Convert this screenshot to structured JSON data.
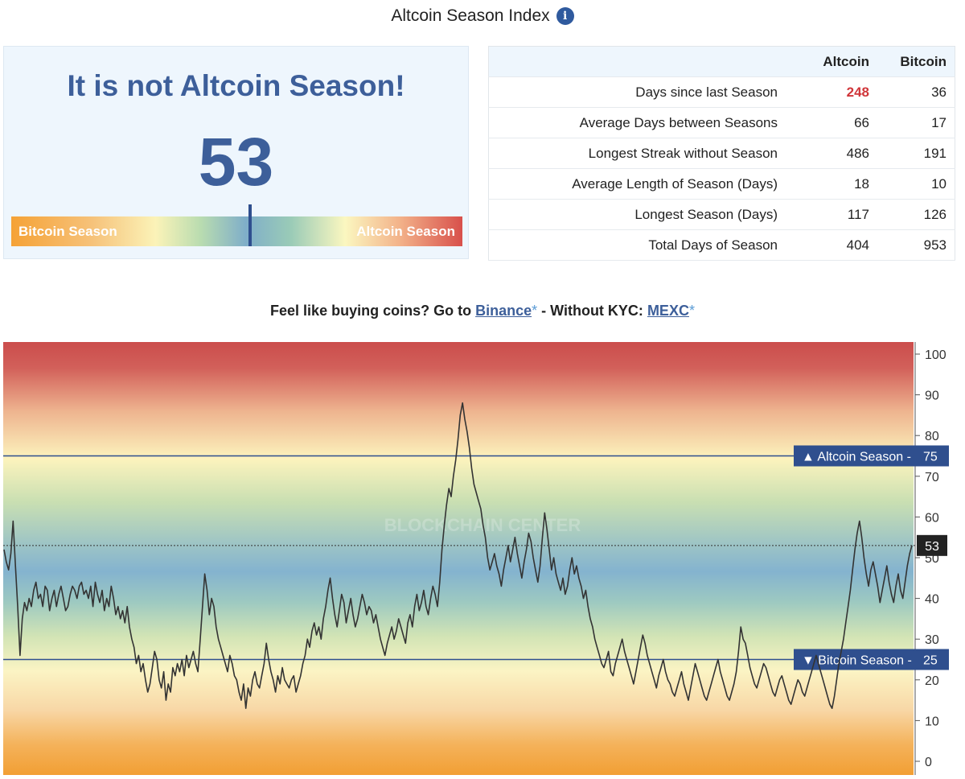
{
  "header": {
    "title": "Altcoin Season Index",
    "info_icon": "info-icon"
  },
  "status": {
    "headline": "It is not Altcoin Season!",
    "index_value": 53,
    "bar_left_label": "Bitcoin Season",
    "bar_right_label": "Altcoin Season",
    "marker_fraction": 0.53
  },
  "table": {
    "columns": [
      "",
      "Altcoin",
      "Bitcoin"
    ],
    "rows": [
      {
        "label": "Days since last Season",
        "altcoin": "248",
        "bitcoin": "36"
      },
      {
        "label": "Average Days between Seasons",
        "altcoin": "66",
        "bitcoin": "17"
      },
      {
        "label": "Longest Streak without Season",
        "altcoin": "486",
        "bitcoin": "191"
      },
      {
        "label": "Average Length of Season (Days)",
        "altcoin": "18",
        "bitcoin": "10"
      },
      {
        "label": "Longest Season (Days)",
        "altcoin": "117",
        "bitcoin": "126"
      },
      {
        "label": "Total Days of Season",
        "altcoin": "404",
        "bitcoin": "953"
      }
    ],
    "highlight_color": "#d0363a"
  },
  "promo": {
    "prefix": "Feel like buying coins? Go to ",
    "binance_link": "Binance",
    "star": "*",
    "middle": " - Without KYC: ",
    "mexc_link": "MEXC"
  },
  "colors": {
    "brand_blue": "#3d5f9a",
    "line": "#333333",
    "threshold_line": "#2f4f8e",
    "alt_red": "#d0363a"
  },
  "chart_data": {
    "type": "line",
    "title": "",
    "xlabel": "",
    "ylabel": "",
    "ylim": [
      0,
      100
    ],
    "y_ticks": [
      0,
      10,
      20,
      30,
      40,
      50,
      60,
      70,
      80,
      90,
      100
    ],
    "grid": false,
    "watermark": "BLOCKCHAIN CENTER",
    "current_value": 53,
    "thresholds": [
      {
        "label": "Altcoin Season",
        "value": 75,
        "marker": "▲"
      },
      {
        "label": "Bitcoin Season",
        "value": 25,
        "marker": "▼"
      }
    ],
    "series": [
      {
        "values": [
          52,
          49,
          47,
          51,
          59,
          48,
          38,
          26,
          35,
          39,
          37,
          40,
          38,
          42,
          44,
          40,
          41,
          38,
          43,
          42,
          37,
          40,
          42,
          38,
          41,
          43,
          40,
          37,
          38,
          41,
          43,
          42,
          40,
          43,
          44,
          41,
          42,
          40,
          43,
          38,
          44,
          41,
          39,
          42,
          37,
          40,
          38,
          43,
          40,
          36,
          38,
          35,
          37,
          34,
          38,
          33,
          30,
          28,
          24,
          26,
          22,
          24,
          20,
          17,
          19,
          23,
          27,
          25,
          20,
          18,
          22,
          15,
          19,
          17,
          23,
          21,
          24,
          22,
          25,
          21,
          26,
          23,
          25,
          27,
          24,
          22,
          30,
          38,
          46,
          42,
          36,
          40,
          38,
          33,
          30,
          28,
          26,
          24,
          22,
          26,
          24,
          21,
          20,
          17,
          15,
          19,
          13,
          18,
          16,
          20,
          22,
          19,
          18,
          21,
          24,
          29,
          25,
          22,
          20,
          17,
          21,
          19,
          23,
          20,
          19,
          18,
          20,
          21,
          17,
          19,
          21,
          24,
          26,
          30,
          28,
          32,
          34,
          31,
          33,
          30,
          35,
          38,
          42,
          45,
          40,
          36,
          33,
          37,
          41,
          39,
          34,
          37,
          40,
          36,
          33,
          35,
          38,
          41,
          39,
          36,
          38,
          37,
          34,
          36,
          33,
          30,
          28,
          26,
          29,
          31,
          33,
          30,
          32,
          35,
          33,
          31,
          29,
          34,
          36,
          33,
          38,
          41,
          37,
          39,
          42,
          38,
          36,
          40,
          43,
          41,
          38,
          44,
          52,
          58,
          63,
          67,
          65,
          70,
          74,
          79,
          85,
          88,
          84,
          81,
          77,
          72,
          68,
          66,
          64,
          62,
          58,
          55,
          50,
          47,
          49,
          51,
          48,
          46,
          43,
          47,
          50,
          53,
          49,
          52,
          55,
          51,
          48,
          45,
          49,
          52,
          56,
          54,
          50,
          47,
          44,
          48,
          55,
          61,
          57,
          52,
          47,
          50,
          46,
          44,
          42,
          45,
          41,
          43,
          47,
          50,
          46,
          48,
          45,
          43,
          40,
          42,
          38,
          35,
          33,
          30,
          28,
          26,
          24,
          23,
          25,
          27,
          22,
          21,
          24,
          26,
          28,
          30,
          27,
          25,
          23,
          21,
          19,
          22,
          25,
          28,
          31,
          29,
          26,
          24,
          22,
          20,
          18,
          21,
          23,
          25,
          22,
          20,
          19,
          17,
          16,
          18,
          20,
          22,
          19,
          17,
          15,
          18,
          21,
          24,
          22,
          20,
          18,
          16,
          15,
          17,
          19,
          21,
          23,
          25,
          22,
          20,
          18,
          16,
          15,
          17,
          19,
          22,
          27,
          33,
          30,
          29,
          26,
          23,
          21,
          19,
          18,
          20,
          22,
          24,
          23,
          21,
          19,
          17,
          16,
          18,
          20,
          21,
          19,
          17,
          15,
          14,
          16,
          18,
          20,
          19,
          17,
          16,
          18,
          20,
          22,
          24,
          26,
          24,
          22,
          20,
          18,
          16,
          14,
          13,
          16,
          20,
          24,
          27,
          30,
          34,
          38,
          42,
          47,
          52,
          56,
          59,
          55,
          50,
          46,
          43,
          47,
          49,
          46,
          43,
          39,
          42,
          45,
          48,
          44,
          41,
          39,
          43,
          46,
          42,
          40,
          44,
          48,
          51,
          53
        ]
      }
    ]
  }
}
